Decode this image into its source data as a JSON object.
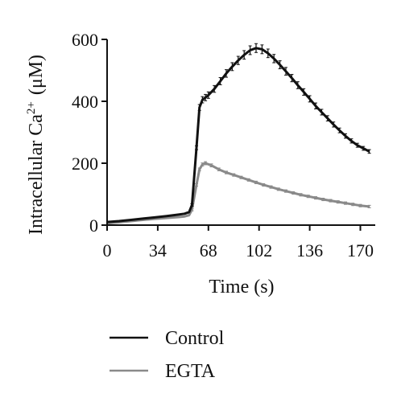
{
  "chart_data": {
    "type": "line",
    "xlabel": "Time (s)",
    "ylabel": {
      "prefix": "Intracellular Ca",
      "superscript": "2+",
      "unit": "(μM)"
    },
    "xlim": [
      0,
      180
    ],
    "ylim": [
      0,
      600
    ],
    "xticks": [
      0,
      34,
      68,
      102,
      136,
      170
    ],
    "yticks": [
      0,
      200,
      400,
      600
    ],
    "grid": false,
    "legend_position": "bottom-left",
    "error_bars": true,
    "series": [
      {
        "name": "Control",
        "color": "#111111",
        "x": [
          0,
          8,
          16,
          24,
          32,
          40,
          48,
          52,
          55,
          57,
          60,
          62,
          64,
          66,
          68,
          72,
          76,
          80,
          84,
          88,
          92,
          96,
          100,
          104,
          108,
          112,
          116,
          120,
          124,
          128,
          132,
          136,
          140,
          144,
          148,
          152,
          156,
          160,
          164,
          168,
          172,
          176
        ],
        "y": [
          10,
          13,
          17,
          21,
          25,
          29,
          34,
          37,
          42,
          65,
          250,
          380,
          405,
          412,
          420,
          440,
          465,
          490,
          512,
          532,
          550,
          565,
          572,
          568,
          555,
          538,
          518,
          497,
          475,
          452,
          430,
          408,
          385,
          365,
          345,
          325,
          306,
          288,
          272,
          258,
          248,
          238
        ]
      },
      {
        "name": "EGTA",
        "color": "#8a8a8a",
        "x": [
          0,
          8,
          16,
          24,
          32,
          40,
          48,
          52,
          55,
          57,
          60,
          62,
          64,
          66,
          70,
          75,
          80,
          85,
          90,
          95,
          100,
          105,
          110,
          115,
          120,
          125,
          130,
          135,
          140,
          145,
          150,
          155,
          160,
          165,
          170,
          176
        ],
        "y": [
          6,
          9,
          13,
          17,
          20,
          23,
          26,
          28,
          32,
          50,
          130,
          180,
          196,
          200,
          193,
          180,
          170,
          162,
          154,
          146,
          138,
          130,
          123,
          116,
          110,
          104,
          98,
          93,
          88,
          83,
          79,
          75,
          71,
          67,
          63,
          60
        ]
      }
    ]
  }
}
